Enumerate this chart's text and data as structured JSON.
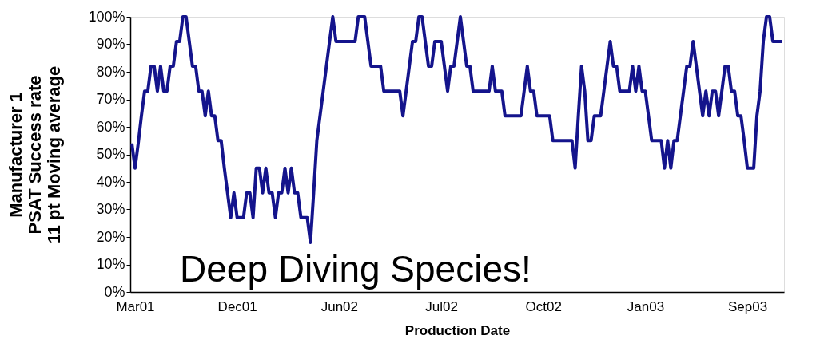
{
  "chart_data": {
    "type": "line",
    "ylabel": "Manufacturer 1\nPSAT Success rate\n11 pt Moving average",
    "xlabel": "Production Date",
    "annotations": [
      "Deep Diving Species!"
    ],
    "categories": [
      null,
      "Mar01",
      null,
      null,
      null,
      null,
      null,
      null,
      null,
      null,
      null,
      null,
      null,
      null,
      null,
      null,
      null,
      null,
      null,
      null,
      null,
      null,
      null,
      null,
      null,
      null,
      null,
      null,
      null,
      null,
      null,
      null,
      null,
      "Dec01",
      null,
      null,
      null,
      null,
      null,
      null,
      null,
      null,
      null,
      null,
      null,
      null,
      null,
      null,
      null,
      null,
      null,
      null,
      null,
      null,
      null,
      null,
      null,
      null,
      null,
      null,
      null,
      null,
      null,
      null,
      null,
      "Jun02",
      null,
      null,
      null,
      null,
      null,
      null,
      null,
      null,
      null,
      null,
      null,
      null,
      null,
      null,
      null,
      null,
      null,
      null,
      null,
      null,
      null,
      null,
      null,
      null,
      null,
      null,
      null,
      null,
      null,
      null,
      null,
      "Jul02",
      null,
      null,
      null,
      null,
      null,
      null,
      null,
      null,
      null,
      null,
      null,
      null,
      null,
      null,
      null,
      null,
      null,
      null,
      null,
      null,
      null,
      null,
      null,
      null,
      null,
      null,
      null,
      null,
      null,
      null,
      null,
      "Oct02",
      null,
      null,
      null,
      null,
      null,
      null,
      null,
      null,
      null,
      null,
      null,
      null,
      null,
      null,
      null,
      null,
      null,
      null,
      null,
      null,
      null,
      null,
      null,
      null,
      null,
      null,
      null,
      null,
      null,
      null,
      null,
      "Jan03",
      null,
      null,
      null,
      null,
      null,
      null,
      null,
      null,
      null,
      null,
      null,
      null,
      null,
      null,
      null,
      null,
      null,
      null,
      null,
      null,
      null,
      null,
      null,
      null,
      null,
      null,
      null,
      null,
      null,
      null,
      null,
      "Sep03",
      null,
      null,
      null,
      null,
      null,
      null,
      null,
      null,
      null,
      null,
      null
    ],
    "series": [
      {
        "color": "#14148c",
        "values": [
          54,
          45,
          54,
          64,
          73,
          73,
          82,
          82,
          73,
          82,
          73,
          73,
          82,
          82,
          91,
          91,
          100,
          100,
          91,
          82,
          82,
          73,
          73,
          64,
          73,
          64,
          64,
          55,
          55,
          45,
          36,
          27,
          36,
          27,
          27,
          27,
          36,
          36,
          27,
          45,
          45,
          36,
          45,
          36,
          36,
          27,
          36,
          36,
          45,
          36,
          45,
          36,
          36,
          27,
          27,
          27,
          18,
          36,
          55,
          64,
          73,
          82,
          91,
          100,
          91,
          91,
          91,
          91,
          91,
          91,
          91,
          100,
          100,
          100,
          91,
          82,
          82,
          82,
          82,
          73,
          73,
          73,
          73,
          73,
          73,
          64,
          73,
          82,
          91,
          91,
          100,
          100,
          91,
          82,
          82,
          91,
          91,
          91,
          82,
          73,
          82,
          82,
          91,
          100,
          91,
          82,
          82,
          73,
          73,
          73,
          73,
          73,
          73,
          82,
          73,
          73,
          73,
          64,
          64,
          64,
          64,
          64,
          64,
          73,
          82,
          73,
          73,
          64,
          64,
          64,
          64,
          64,
          55,
          55,
          55,
          55,
          55,
          55,
          55,
          45,
          64,
          82,
          73,
          55,
          55,
          64,
          64,
          64,
          73,
          82,
          91,
          82,
          82,
          73,
          73,
          73,
          73,
          82,
          73,
          82,
          73,
          73,
          64,
          55,
          55,
          55,
          55,
          45,
          55,
          45,
          55,
          55,
          64,
          73,
          82,
          82,
          91,
          82,
          73,
          64,
          73,
          64,
          73,
          73,
          64,
          73,
          82,
          82,
          73,
          73,
          64,
          64,
          55,
          45,
          45,
          45,
          64,
          73,
          91,
          100,
          100,
          91,
          91,
          91,
          91
        ]
      }
    ],
    "ylim": [
      0,
      100
    ],
    "yticks": [
      {
        "value": 0,
        "label": "0%"
      },
      {
        "value": 10,
        "label": "10%"
      },
      {
        "value": 20,
        "label": "20%"
      },
      {
        "value": 30,
        "label": "30%"
      },
      {
        "value": 40,
        "label": "40%"
      },
      {
        "value": 50,
        "label": "50%"
      },
      {
        "value": 60,
        "label": "60%"
      },
      {
        "value": 70,
        "label": "70%"
      },
      {
        "value": 80,
        "label": "80%"
      },
      {
        "value": 90,
        "label": "90%"
      },
      {
        "value": 100,
        "label": "100%"
      }
    ],
    "grid": false,
    "marker": "none",
    "line_style": "solid"
  }
}
